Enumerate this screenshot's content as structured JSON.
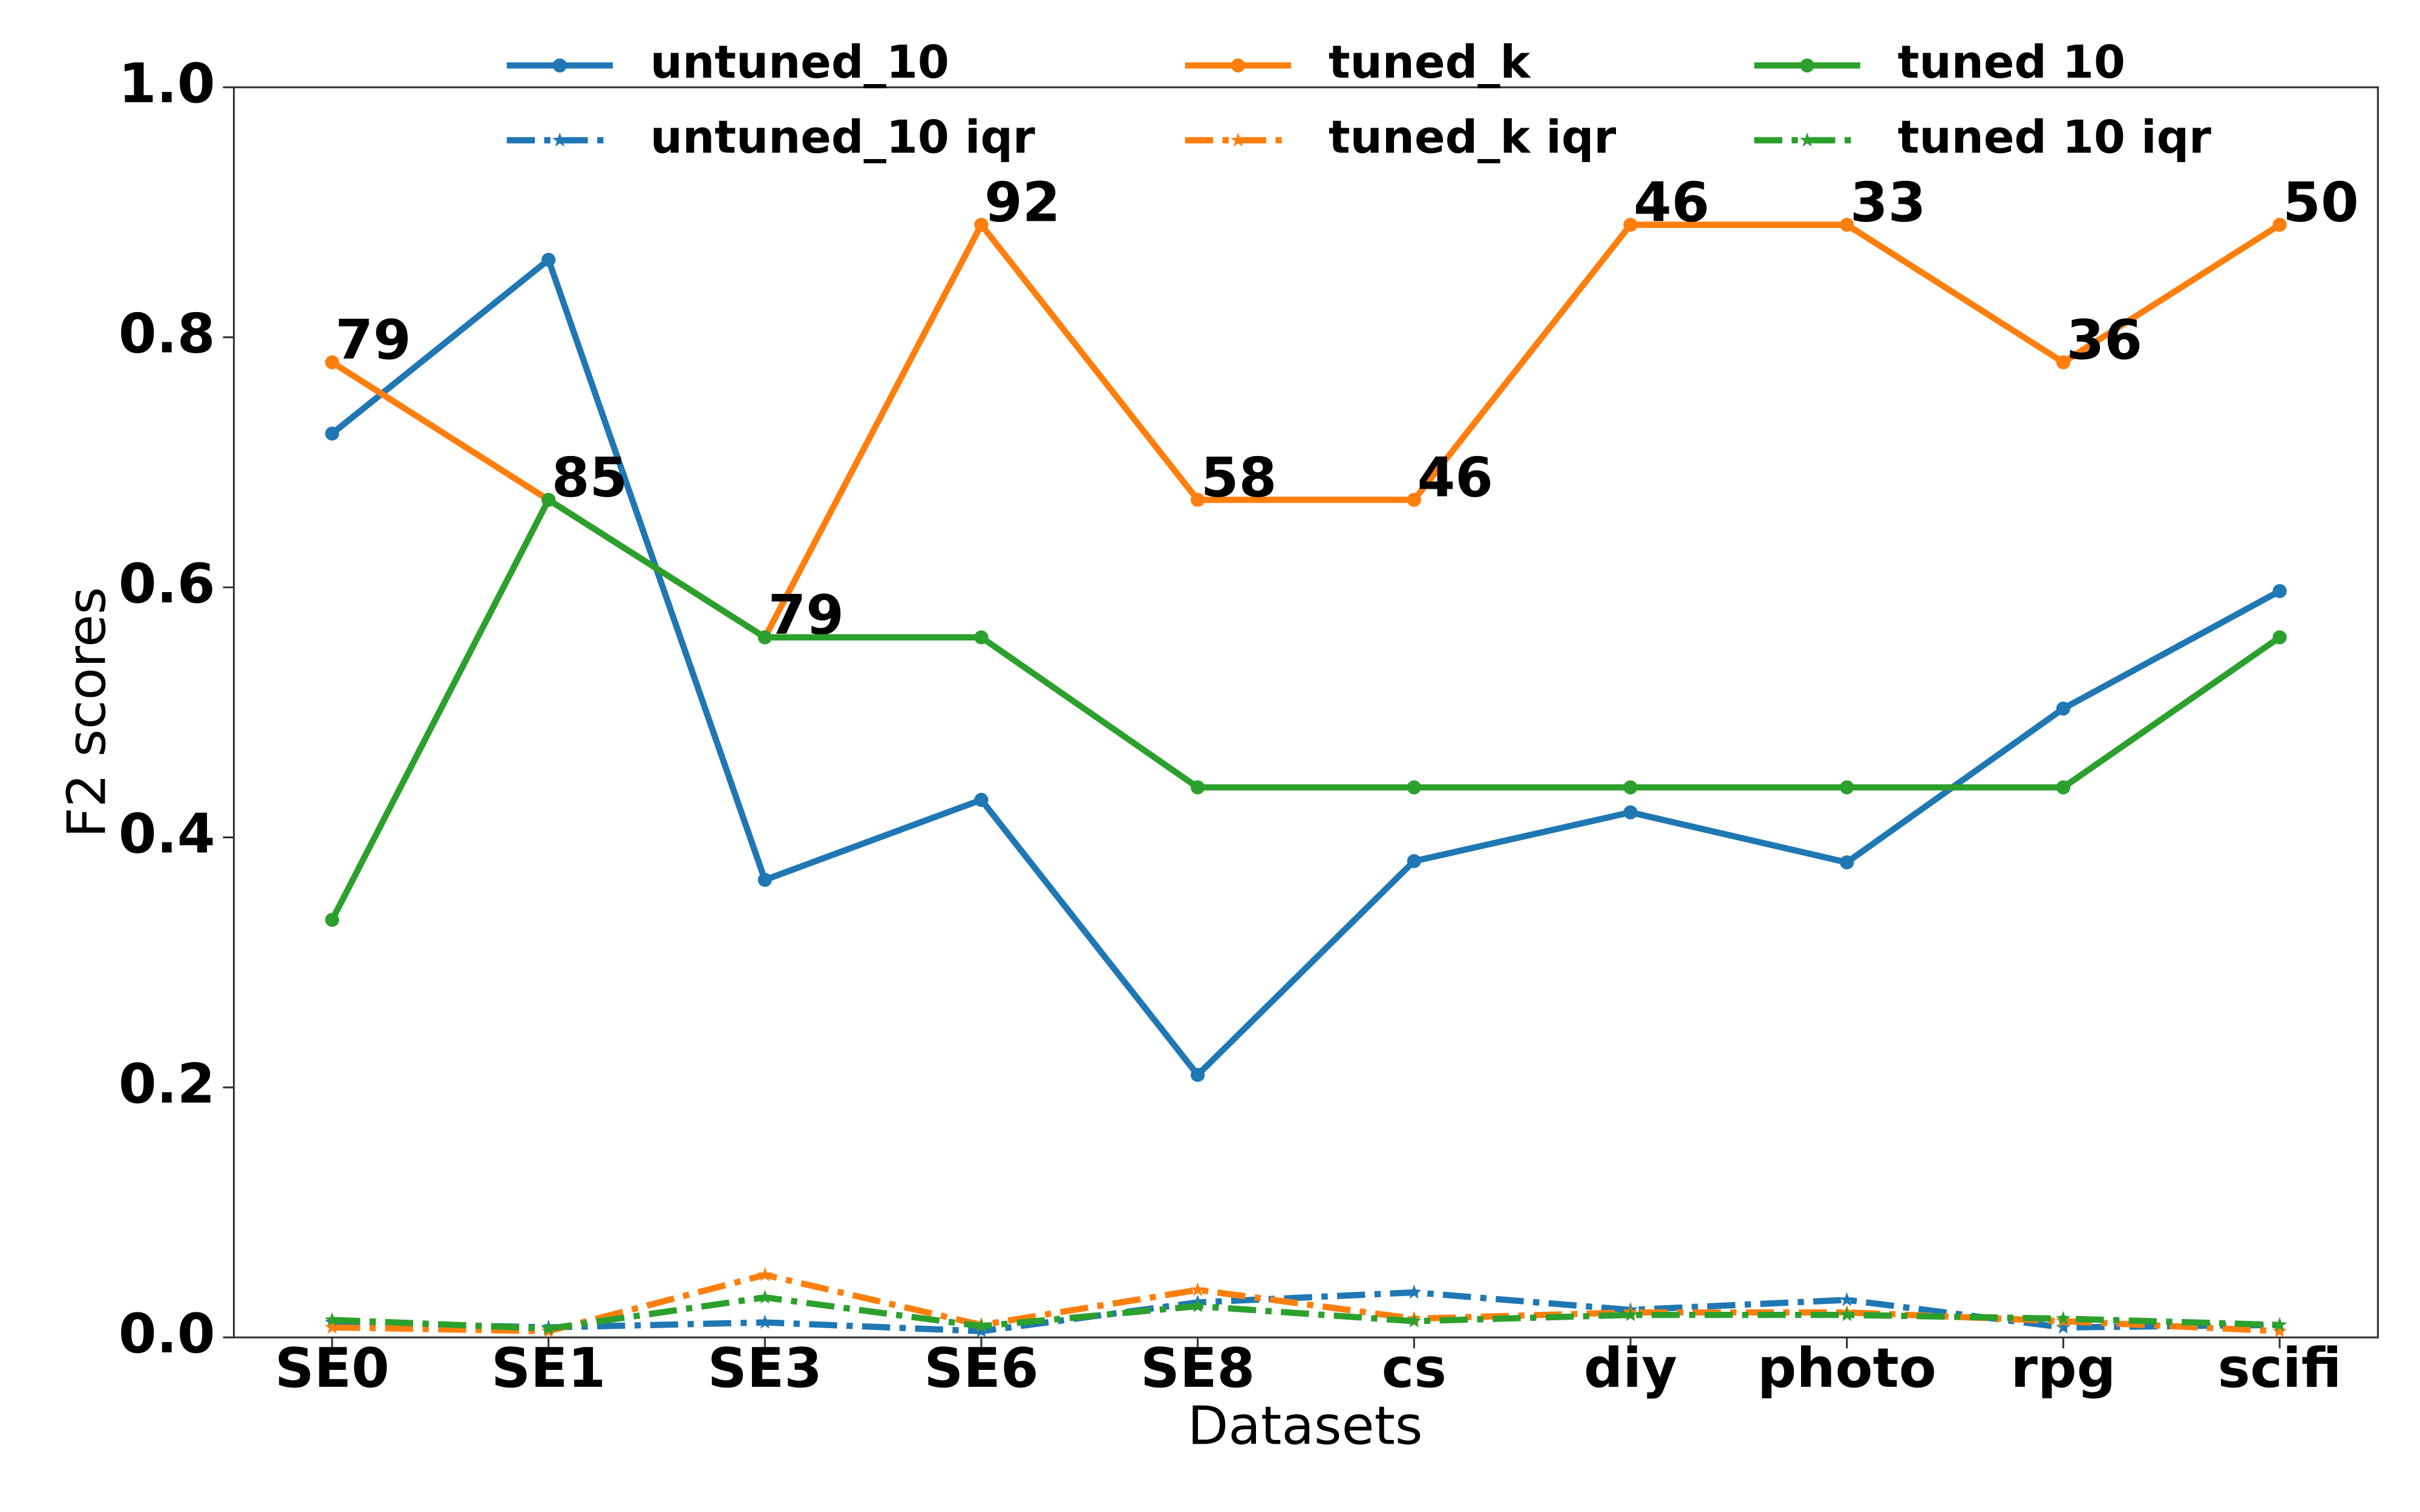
{
  "chart_data": {
    "type": "line",
    "xlabel": "Datasets",
    "ylabel": "F2 scores",
    "categories": [
      "SE0",
      "SE1",
      "SE3",
      "SE6",
      "SE8",
      "cs",
      "diy",
      "photo",
      "rpg",
      "scifi"
    ],
    "series": [
      {
        "name": "untuned_10",
        "color": "#1f77b4",
        "linestyle": "solid",
        "marker": "circle",
        "values": [
          0.723,
          0.862,
          0.366,
          0.43,
          0.21,
          0.381,
          0.42,
          0.38,
          0.503,
          0.597
        ]
      },
      {
        "name": "untuned_10 iqr",
        "color": "#1f77b4",
        "linestyle": "dashdot",
        "marker": "star",
        "values": [
          0.012,
          0.008,
          0.012,
          0.005,
          0.028,
          0.036,
          0.022,
          0.03,
          0.008,
          0.01
        ]
      },
      {
        "name": "tuned_k",
        "color": "#ff7f0e",
        "linestyle": "solid",
        "marker": "circle",
        "values": [
          0.78,
          0.67,
          0.56,
          0.89,
          0.67,
          0.67,
          0.89,
          0.89,
          0.78,
          0.89
        ],
        "annotations": [
          "79",
          "85",
          "79",
          "92",
          "58",
          "46",
          "46",
          "33",
          "36",
          "50"
        ]
      },
      {
        "name": "tuned_k iqr",
        "color": "#ff7f0e",
        "linestyle": "dashdot",
        "marker": "star",
        "values": [
          0.008,
          0.005,
          0.05,
          0.01,
          0.038,
          0.015,
          0.02,
          0.02,
          0.013,
          0.005
        ]
      },
      {
        "name": "tuned 10",
        "color": "#2ca02c",
        "linestyle": "solid",
        "marker": "circle",
        "values": [
          0.334,
          0.67,
          0.56,
          0.56,
          0.44,
          0.44,
          0.44,
          0.44,
          0.44,
          0.56
        ]
      },
      {
        "name": "tuned 10 iqr",
        "color": "#2ca02c",
        "linestyle": "dashdot",
        "marker": "star",
        "values": [
          0.014,
          0.007,
          0.032,
          0.009,
          0.025,
          0.013,
          0.018,
          0.018,
          0.015,
          0.01
        ]
      }
    ],
    "ylim": [
      0,
      1
    ],
    "yticks": [
      {
        "value": 0,
        "label": "0.0"
      },
      {
        "value": 0.2,
        "label": "0.2"
      },
      {
        "value": 0.4,
        "label": "0.4"
      },
      {
        "value": 0.6,
        "label": "0.6"
      },
      {
        "value": 0.8,
        "label": "0.8"
      },
      {
        "value": 1,
        "label": "1.0"
      }
    ],
    "legend": "upper center"
  }
}
